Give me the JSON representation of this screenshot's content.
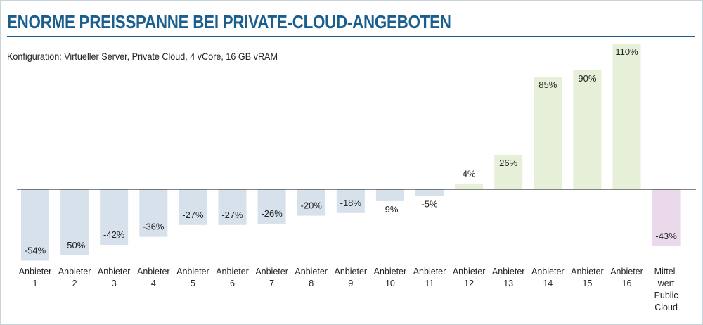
{
  "title": "ENORME PREISSPANNE BEI PRIVATE-CLOUD-ANGEBOTEN",
  "subtitle": "Konfiguration: Virtueller Server, Private Cloud, 4 vCore, 16 GB vRAM",
  "colors": {
    "title": "#1a5e8e",
    "negative_bar": "#d6e1ec",
    "positive_bar": "#e6efd8",
    "average_bar": "#ead9ea",
    "zero_line": "#3a3a3a"
  },
  "chart_data": {
    "type": "bar",
    "title": "ENORME PREISSPANNE BEI PRIVATE-CLOUD-ANGEBOTEN",
    "subtitle": "Konfiguration: Virtueller Server, Private Cloud, 4 vCore, 16 GB vRAM",
    "categories": [
      [
        "Anbieter",
        "1"
      ],
      [
        "Anbieter",
        "2"
      ],
      [
        "Anbieter",
        "3"
      ],
      [
        "Anbieter",
        "4"
      ],
      [
        "Anbieter",
        "5"
      ],
      [
        "Anbieter",
        "6"
      ],
      [
        "Anbieter",
        "7"
      ],
      [
        "Anbieter",
        "8"
      ],
      [
        "Anbieter",
        "9"
      ],
      [
        "Anbieter",
        "10"
      ],
      [
        "Anbieter",
        "11"
      ],
      [
        "Anbieter",
        "12"
      ],
      [
        "Anbieter",
        "13"
      ],
      [
        "Anbieter",
        "14"
      ],
      [
        "Anbieter",
        "15"
      ],
      [
        "Anbieter",
        "16"
      ],
      [
        "Mittel-",
        "wert",
        "Public",
        "Cloud"
      ]
    ],
    "values": [
      -54,
      -50,
      -42,
      -36,
      -27,
      -27,
      -26,
      -20,
      -18,
      -9,
      -5,
      4,
      26,
      85,
      90,
      110,
      -43
    ],
    "labels": [
      "-54%",
      "-50%",
      "-42%",
      "-36%",
      "-27%",
      "-27%",
      "-26%",
      "-20%",
      "-18%",
      "-9%",
      "-5%",
      "4%",
      "26%",
      "85%",
      "90%",
      "110%",
      "-43%"
    ],
    "unit": "%",
    "ylim": [
      -60,
      110
    ],
    "grid": false,
    "legend": "none"
  }
}
